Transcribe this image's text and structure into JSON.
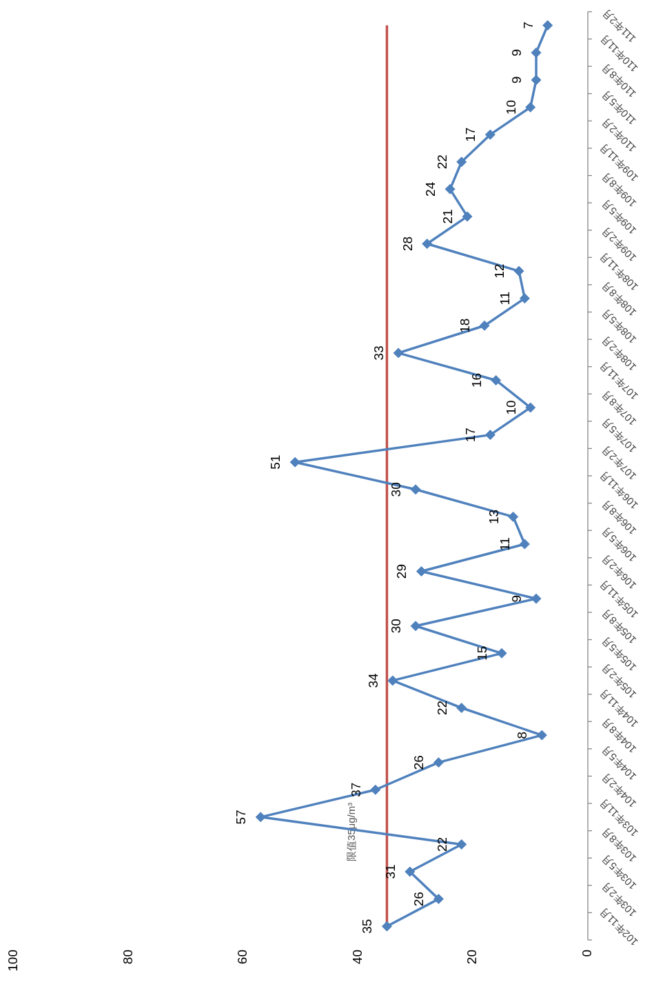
{
  "chart_data": {
    "type": "line",
    "orientation": "horizontal",
    "categories": [
      "111年2月",
      "110年11月",
      "110年8月",
      "110年5月",
      "110年2月",
      "109年11月",
      "109年8月",
      "109年5月",
      "109年2月",
      "108年11月",
      "108年8月",
      "108年5月",
      "108年2月",
      "107年11月",
      "107年8月",
      "107年5月",
      "107年2月",
      "106年11月",
      "106年8月",
      "106年5月",
      "106年2月",
      "105年11月",
      "105年8月",
      "105年5月",
      "105年2月",
      "104年11月",
      "104年8月",
      "104年5月",
      "104年2月",
      "103年11月",
      "103年8月",
      "103年5月",
      "103年2月",
      "102年11月"
    ],
    "series": [
      {
        "color": "#4f81bd",
        "values": [
          7,
          9,
          9,
          10,
          17,
          22,
          24,
          21,
          28,
          12,
          11,
          18,
          33,
          16,
          10,
          17,
          51,
          30,
          13,
          11,
          29,
          9,
          30,
          15,
          34,
          22,
          8,
          26,
          37,
          57,
          22,
          31,
          26,
          35
        ]
      }
    ],
    "xlim": [
      100,
      0
    ],
    "xticks": [
      100,
      80,
      60,
      40,
      20,
      0
    ],
    "marker": "diamond",
    "line_style": "solid",
    "data_labels": true,
    "grid": false,
    "ref_lines": [
      {
        "axis": "x",
        "value": 35,
        "label": "限值35μg/m³",
        "color": "#c0504d"
      }
    ]
  }
}
